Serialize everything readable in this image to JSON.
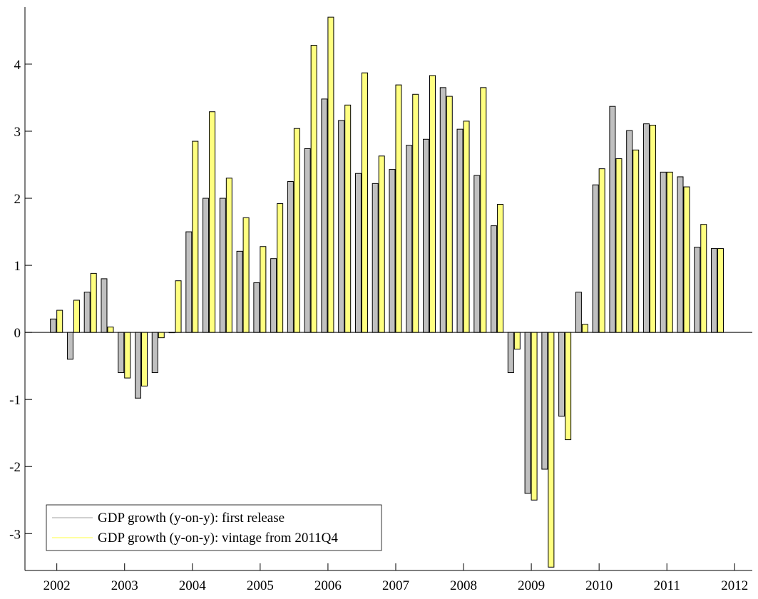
{
  "chart_data": {
    "type": "bar",
    "x": [
      2002,
      2002.25,
      2002.5,
      2002.75,
      2003,
      2003.25,
      2003.5,
      2003.75,
      2004,
      2004.25,
      2004.5,
      2004.75,
      2005,
      2005.25,
      2005.5,
      2005.75,
      2006,
      2006.25,
      2006.5,
      2006.75,
      2007,
      2007.25,
      2007.5,
      2007.75,
      2008,
      2008.25,
      2008.5,
      2008.75,
      2009,
      2009.25,
      2009.5,
      2009.75,
      2010,
      2010.25,
      2010.5,
      2010.75,
      2011,
      2011.25,
      2011.5,
      2011.75
    ],
    "series": [
      {
        "name": "GDP growth (y-on-y): first release",
        "color": "#c0c0c0",
        "values": [
          0.2,
          -0.4,
          0.6,
          0.8,
          -0.6,
          -0.98,
          -0.6,
          0,
          1.5,
          2.0,
          2.0,
          1.21,
          0.74,
          1.1,
          2.25,
          2.74,
          3.48,
          3.16,
          2.37,
          2.22,
          2.43,
          2.79,
          2.88,
          3.65,
          3.03,
          2.34,
          1.59,
          -0.6,
          -2.4,
          -2.04,
          -1.25,
          0.6,
          2.2,
          3.37,
          3.01,
          3.11,
          2.39,
          2.32,
          1.27,
          1.25
        ]
      },
      {
        "name": "GDP growth (y-on-y): vintage from 2011Q4",
        "color": "#ffff80",
        "values": [
          0.33,
          0.48,
          0.88,
          0.08,
          -0.68,
          -0.8,
          -0.08,
          0.77,
          2.85,
          3.29,
          2.3,
          1.71,
          1.28,
          1.92,
          3.04,
          4.28,
          4.7,
          3.39,
          3.87,
          2.63,
          3.69,
          3.55,
          3.83,
          3.52,
          3.15,
          3.65,
          1.91,
          -0.25,
          -2.5,
          -3.5,
          -1.6,
          0.12,
          2.44,
          2.59,
          2.72,
          3.09,
          2.39,
          2.17,
          1.61,
          1.25
        ]
      }
    ],
    "xlim": [
      2001.53,
      2012.26
    ],
    "xticks": [
      2002,
      2003,
      2004,
      2005,
      2006,
      2007,
      2008,
      2009,
      2010,
      2011,
      2012
    ],
    "ylim": [
      -3.55,
      4.85
    ],
    "yticks": [
      -3,
      -2,
      -1,
      0,
      1,
      2,
      3,
      4
    ],
    "legend": "lower left"
  }
}
